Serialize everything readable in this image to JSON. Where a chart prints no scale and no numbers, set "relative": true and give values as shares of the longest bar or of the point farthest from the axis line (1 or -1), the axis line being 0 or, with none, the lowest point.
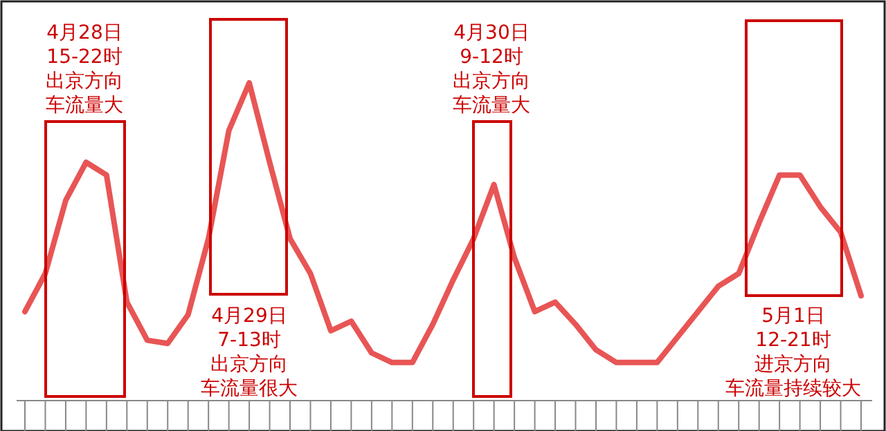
{
  "chart_data": {
    "type": "line",
    "relative": true,
    "categories": [
      null,
      null,
      null,
      null,
      null,
      null,
      null,
      null,
      null,
      null,
      null,
      null,
      null,
      null,
      null,
      null,
      null,
      null,
      null,
      null,
      null,
      null,
      null,
      null,
      null,
      null,
      null,
      null,
      null,
      null,
      null,
      null,
      null,
      null,
      null,
      null,
      null,
      null,
      null,
      null,
      null,
      null
    ],
    "series": [
      {
        "color": "#e85555",
        "values": [
          0.28,
          0.4,
          0.63,
          0.75,
          0.71,
          0.31,
          0.19,
          0.18,
          0.27,
          0.51,
          0.85,
          1,
          0.75,
          0.51,
          0.4,
          0.22,
          0.25,
          0.15,
          0.12,
          0.12,
          0.24,
          0.38,
          0.51,
          0.68,
          0.45,
          0.28,
          0.31,
          0.24,
          0.16,
          0.12,
          0.12,
          0.12,
          0.2,
          0.28,
          0.36,
          0.4,
          0.56,
          0.71,
          0.71,
          0.61,
          0.53,
          0.33
        ]
      }
    ],
    "annotations": [
      "4月28日",
      "15-22时",
      "出京方向",
      "车流量大",
      "4月29日",
      "7-13时",
      "出京方向",
      "车流量很大",
      "4月30日",
      "9-12时",
      "出京方向",
      "车流量大",
      "5月1日",
      "12-21时",
      "进京方向",
      "车流量持续较大"
    ],
    "grid": false
  }
}
